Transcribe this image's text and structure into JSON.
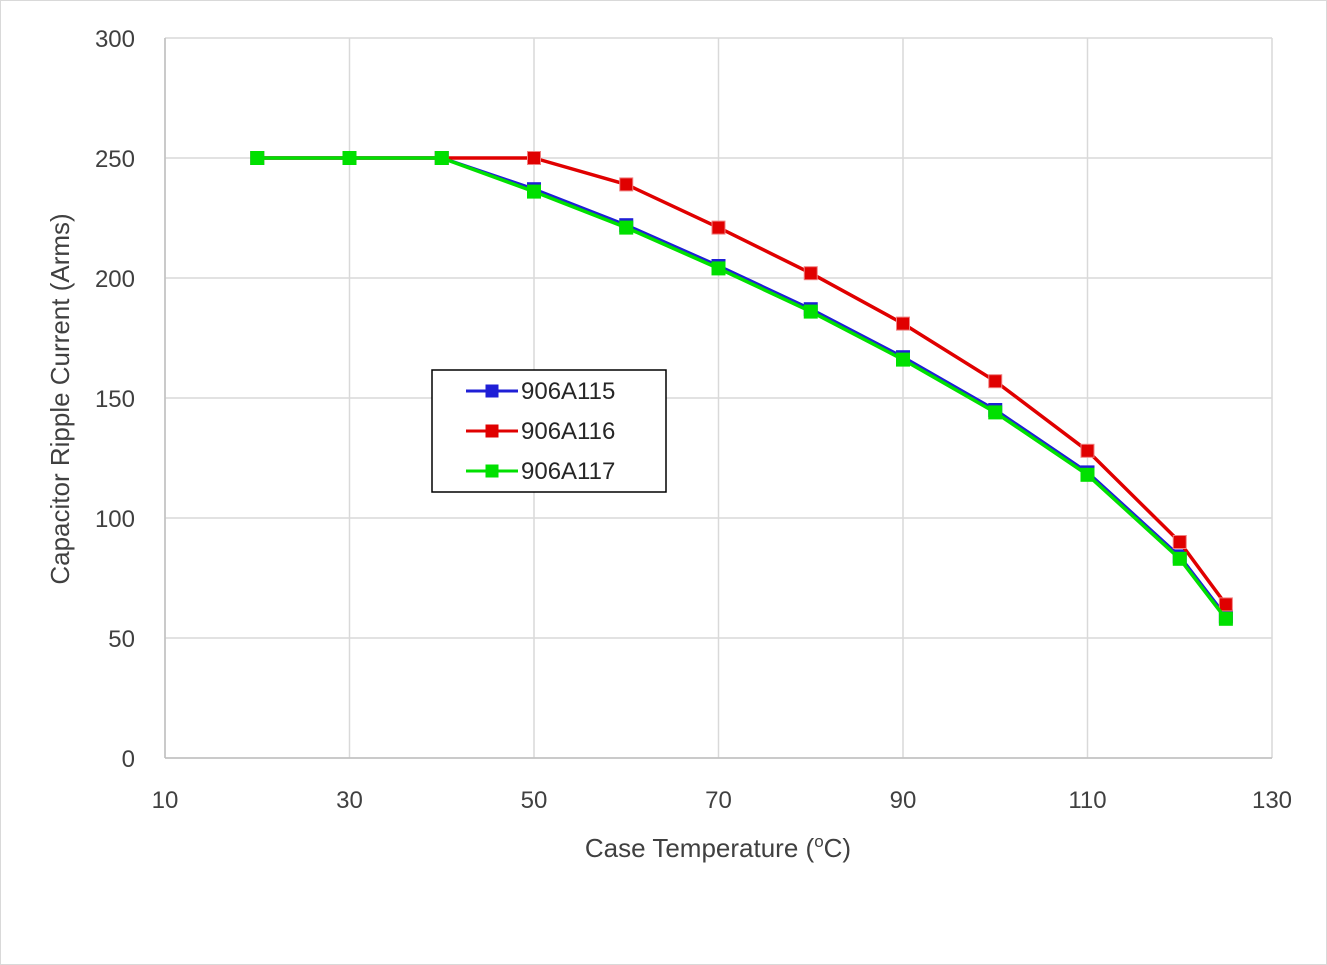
{
  "chart_data": {
    "type": "line",
    "title": "",
    "xlabel": "Case Temperature (",
    "xlabel_sup": "o",
    "xlabel_suffix": "C)",
    "ylabel": "Capacitor Ripple Current (Arms)",
    "xlim": [
      10,
      130
    ],
    "ylim": [
      0,
      300
    ],
    "x_ticks": [
      10,
      30,
      50,
      70,
      90,
      110,
      130
    ],
    "y_ticks": [
      0,
      50,
      100,
      150,
      200,
      250,
      300
    ],
    "grid": true,
    "legend_position": "center-left",
    "series": [
      {
        "name": "906A115",
        "color": "#1f1fd6",
        "marker": "square",
        "x": [
          20,
          30,
          40,
          50,
          60,
          70,
          80,
          90,
          100,
          110,
          120,
          125
        ],
        "y": [
          250,
          250,
          250,
          237,
          222,
          205,
          187,
          167,
          145,
          119,
          84,
          59
        ]
      },
      {
        "name": "906A116",
        "color": "#e00000",
        "marker": "square",
        "x": [
          20,
          30,
          40,
          50,
          60,
          70,
          80,
          90,
          100,
          110,
          120,
          125
        ],
        "y": [
          250,
          250,
          250,
          250,
          239,
          221,
          202,
          181,
          157,
          128,
          90,
          64
        ]
      },
      {
        "name": "906A117",
        "color": "#00e000",
        "marker": "square",
        "x": [
          20,
          30,
          40,
          50,
          60,
          70,
          80,
          90,
          100,
          110,
          120,
          125
        ],
        "y": [
          250,
          250,
          250,
          236,
          221,
          204,
          186,
          166,
          144,
          118,
          83,
          58
        ]
      }
    ]
  }
}
